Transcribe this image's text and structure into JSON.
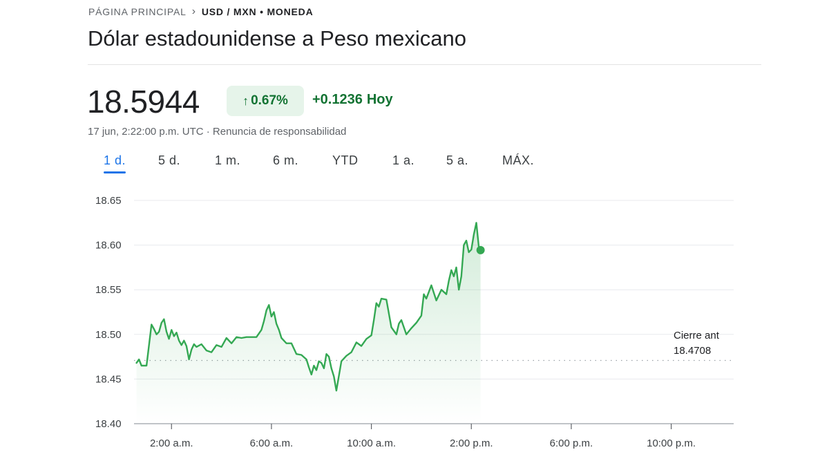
{
  "breadcrumb": {
    "home": "PÁGINA PRINCIPAL",
    "current": "USD / MXN • MONEDA"
  },
  "title": "Dólar estadounidense a Peso mexicano",
  "price": "18.5944",
  "change": {
    "percent": "0.67%",
    "absolute": "+0.1236",
    "period": "Hoy"
  },
  "meta": "17 jun, 2:22:00 p.m. UTC · Renuncia de responsabilidad",
  "tabs": [
    "1 d.",
    "5 d.",
    "1 m.",
    "6 m.",
    "YTD",
    "1 a.",
    "5 a.",
    "MÁX."
  ],
  "colors": {
    "up": "#34a853",
    "up_text": "#137333",
    "badge_bg": "#e6f4ea",
    "active_tab": "#1a73e8",
    "grid": "#e8eaed"
  },
  "chart_data": {
    "type": "line",
    "title": "",
    "xlabel": "",
    "ylabel": "",
    "ylim": [
      18.4,
      18.65
    ],
    "xlim": [
      0.5,
      24.5
    ],
    "yticks": [
      "18.65",
      "18.60",
      "18.55",
      "18.50",
      "18.45",
      "18.40"
    ],
    "ytick_values": [
      18.65,
      18.6,
      18.55,
      18.5,
      18.45,
      18.4
    ],
    "xticks": [
      "2:00 a.m.",
      "6:00 a.m.",
      "10:00 a.m.",
      "2:00 p.m.",
      "6:00 p.m.",
      "10:00 p.m."
    ],
    "xtick_values": [
      2,
      6,
      10,
      14,
      18,
      22
    ],
    "previous_close": {
      "label": "Cierre ant",
      "value": 18.4708,
      "value_label": "18.4708"
    },
    "last_point": {
      "x": 14.37,
      "y": 18.5944
    },
    "series": [
      {
        "name": "USD/MXN",
        "x": [
          0.6,
          0.7,
          0.8,
          1.0,
          1.2,
          1.3,
          1.4,
          1.5,
          1.6,
          1.7,
          1.8,
          1.9,
          2.0,
          2.1,
          2.2,
          2.3,
          2.4,
          2.5,
          2.6,
          2.7,
          2.8,
          2.9,
          3.0,
          3.2,
          3.4,
          3.6,
          3.8,
          4.0,
          4.2,
          4.4,
          4.6,
          4.8,
          5.0,
          5.2,
          5.4,
          5.6,
          5.7,
          5.8,
          5.9,
          6.0,
          6.1,
          6.2,
          6.3,
          6.4,
          6.6,
          6.8,
          7.0,
          7.2,
          7.4,
          7.5,
          7.6,
          7.7,
          7.8,
          7.9,
          8.0,
          8.1,
          8.2,
          8.3,
          8.4,
          8.5,
          8.6,
          8.8,
          9.0,
          9.2,
          9.4,
          9.6,
          9.8,
          10.0,
          10.1,
          10.2,
          10.3,
          10.4,
          10.6,
          10.8,
          11.0,
          11.1,
          11.2,
          11.4,
          11.6,
          11.8,
          12.0,
          12.1,
          12.2,
          12.4,
          12.6,
          12.8,
          13.0,
          13.1,
          13.2,
          13.3,
          13.4,
          13.5,
          13.6,
          13.7,
          13.8,
          13.9,
          14.0,
          14.1,
          14.2,
          14.3,
          14.37
        ],
        "values": [
          18.468,
          18.472,
          18.465,
          18.465,
          18.511,
          18.506,
          18.5,
          18.503,
          18.513,
          18.517,
          18.503,
          18.495,
          18.505,
          18.498,
          18.502,
          18.493,
          18.488,
          18.493,
          18.487,
          18.472,
          18.483,
          18.489,
          18.486,
          18.489,
          18.482,
          18.48,
          18.488,
          18.486,
          18.496,
          18.49,
          18.497,
          18.496,
          18.497,
          18.497,
          18.497,
          18.505,
          18.515,
          18.527,
          18.533,
          18.52,
          18.525,
          18.512,
          18.505,
          18.496,
          18.49,
          18.49,
          18.478,
          18.477,
          18.472,
          18.463,
          18.455,
          18.465,
          18.46,
          18.47,
          18.468,
          18.462,
          18.478,
          18.475,
          18.462,
          18.453,
          18.437,
          18.47,
          18.476,
          18.48,
          18.491,
          18.487,
          18.495,
          18.499,
          18.516,
          18.535,
          18.531,
          18.54,
          18.539,
          18.508,
          18.5,
          18.512,
          18.516,
          18.5,
          18.507,
          18.513,
          18.521,
          18.545,
          18.54,
          18.555,
          18.538,
          18.55,
          18.545,
          18.56,
          18.572,
          18.565,
          18.575,
          18.55,
          18.565,
          18.6,
          18.605,
          18.592,
          18.595,
          18.612,
          18.625,
          18.598,
          18.5944
        ]
      }
    ]
  }
}
